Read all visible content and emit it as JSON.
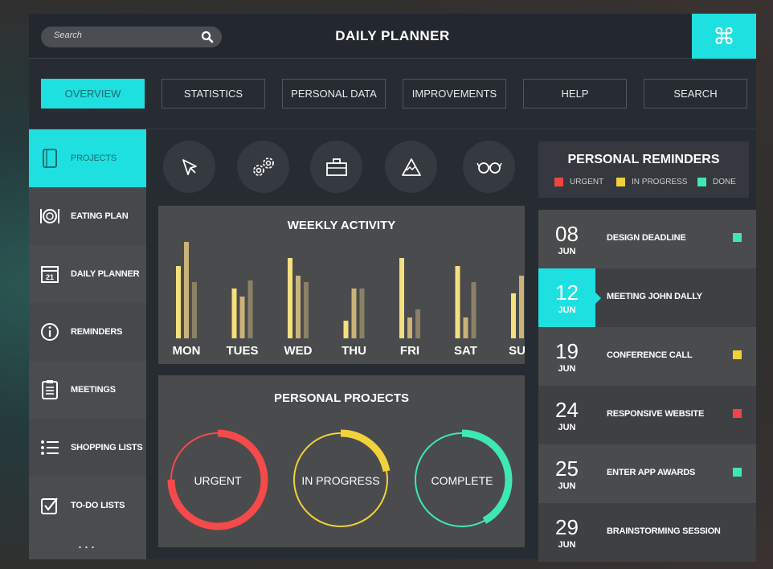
{
  "header": {
    "search_placeholder": "Search",
    "title": "DAILY PLANNER",
    "command_icon": "command-icon"
  },
  "tabs": [
    {
      "label": "OVERVIEW",
      "active": true
    },
    {
      "label": "STATISTICS",
      "active": false
    },
    {
      "label": "PERSONAL DATA",
      "active": false
    },
    {
      "label": "IMPROVEMENTS",
      "active": false
    },
    {
      "label": "HELP",
      "active": false
    },
    {
      "label": "SEARCH",
      "active": false
    }
  ],
  "sidebar": {
    "items": [
      {
        "label": "PROJECTS",
        "icon": "folder-icon",
        "active": true
      },
      {
        "label": "EATING PLAN",
        "icon": "cutlery-icon",
        "active": false
      },
      {
        "label": "DAILY PLANNER",
        "icon": "calendar-icon",
        "icon_text": "21",
        "active": false
      },
      {
        "label": "REMINDERS",
        "icon": "info-icon",
        "active": false
      },
      {
        "label": "MEETINGS",
        "icon": "clipboard-icon",
        "active": false
      },
      {
        "label": "SHOPPING LISTS",
        "icon": "list-icon",
        "active": false
      },
      {
        "label": "TO-DO LISTS",
        "icon": "checkbox-icon",
        "active": false
      }
    ],
    "more": "..."
  },
  "quick_icons": [
    "cursor-icon",
    "gears-icon",
    "briefcase-icon",
    "mountain-icon",
    "glasses-icon"
  ],
  "weekly_activity": {
    "title": "WEEKLY ACTIVITY"
  },
  "chart_data": {
    "type": "bar",
    "title": "WEEKLY ACTIVITY",
    "categories": [
      "MON",
      "TUES",
      "WED",
      "THU",
      "FRI",
      "SAT",
      "SUN"
    ],
    "series": [
      {
        "values": [
          90,
          62,
          100,
          22,
          100,
          90,
          56
        ]
      },
      {
        "values": [
          120,
          52,
          78,
          62,
          26,
          26,
          78
        ]
      },
      {
        "values": [
          70,
          72,
          70,
          62,
          36,
          70,
          70
        ]
      }
    ],
    "colors": [
      "#f5e07e",
      "#c9b378",
      "#8a8166"
    ]
  },
  "personal_projects": {
    "title": "PERSONAL PROJECTS",
    "rings": [
      {
        "label": "URGENT",
        "color": "#f54a4a",
        "progress": 0.75
      },
      {
        "label": "IN PROGRESS",
        "color": "#f0d23c",
        "progress": 0.22
      },
      {
        "label": "COMPLETE",
        "color": "#3ee8b0",
        "progress": 0.42
      }
    ]
  },
  "reminders": {
    "title": "PERSONAL REMINDERS",
    "legend": [
      {
        "label": "URGENT",
        "color": "#ef4545"
      },
      {
        "label": "IN PROGRESS",
        "color": "#f3d03a"
      },
      {
        "label": "DONE",
        "color": "#3ee8b0"
      }
    ],
    "items": [
      {
        "day": "08",
        "month": "JUN",
        "text": "DESIGN DEADLINE",
        "status_color": "#3ee8b0",
        "highlight": false
      },
      {
        "day": "12",
        "month": "JUN",
        "text": "MEETING JOHN DALLY",
        "status_color": "",
        "highlight": true
      },
      {
        "day": "19",
        "month": "JUN",
        "text": "CONFERENCE CALL",
        "status_color": "#f3d03a",
        "highlight": false
      },
      {
        "day": "24",
        "month": "JUN",
        "text": "RESPONSIVE WEBSITE",
        "status_color": "#ef4545",
        "highlight": false
      },
      {
        "day": "25",
        "month": "JUN",
        "text": "ENTER APP AWARDS",
        "status_color": "#3ee8b0",
        "highlight": false
      },
      {
        "day": "29",
        "month": "JUN",
        "text": "BRAINSTORMING SESSION",
        "status_color": "",
        "highlight": false
      }
    ]
  }
}
